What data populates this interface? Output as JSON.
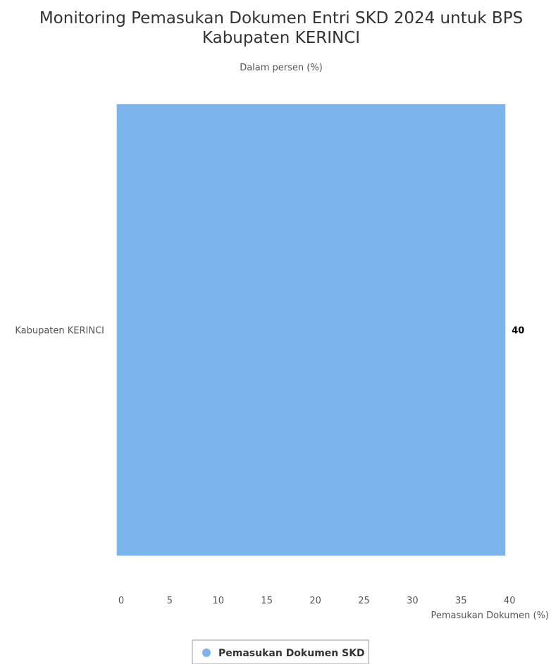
{
  "chart_data": {
    "type": "bar",
    "orientation": "horizontal",
    "title_lines": [
      "Monitoring Pemasukan Dokumen Entri SKD 2024 untuk BPS",
      "Kabupaten KERINCI"
    ],
    "subtitle": "Dalam persen (%)",
    "categories": [
      "Kabupaten KERINCI"
    ],
    "series": [
      {
        "name": "Pemasukan Dokumen SKD",
        "color": "#7cb5ec",
        "values": [
          40
        ]
      }
    ],
    "xlabel": "Pemasukan Dokumen (%)",
    "xlim": [
      0,
      45
    ],
    "xticks": [
      "0",
      "5",
      "10",
      "15",
      "20",
      "25",
      "30",
      "35",
      "40",
      "45"
    ],
    "data_labels": [
      "40"
    ],
    "grid": false,
    "legend": {
      "placement": "bottom-center",
      "items": [
        "Pemasukan Dokumen SKD"
      ]
    }
  }
}
